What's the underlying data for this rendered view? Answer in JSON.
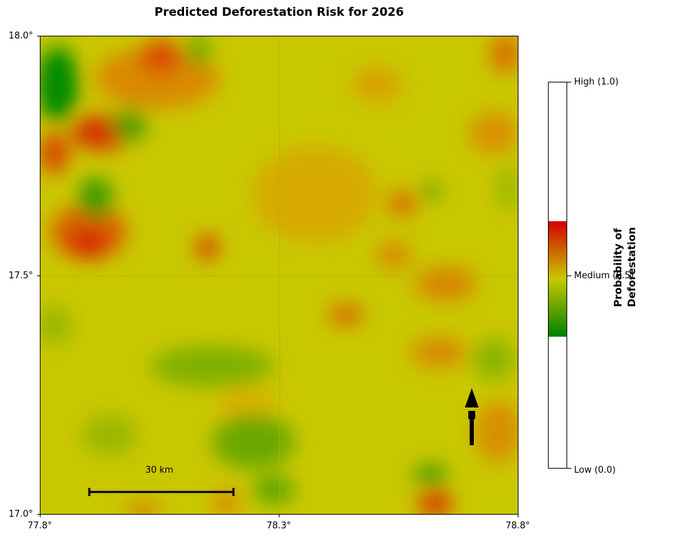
{
  "title": "Predicted Deforestation Risk for 2026",
  "map": {
    "x_ticks": [
      "77.8°",
      "78.3°",
      "78.8°"
    ],
    "y_ticks": [
      "18.0°",
      "17.5°",
      "17.0°"
    ],
    "scale_bar_label": "30 km",
    "north_arrow": "north-arrow-icon"
  },
  "colorbar": {
    "title_line1": "Probability of",
    "title_line2": "Deforestation",
    "labels": {
      "high": "High (1.0)",
      "medium": "Medium (0.5)",
      "low": "Low (0.0)"
    },
    "colors": {
      "low": "#008000",
      "medium": "#c8c800",
      "high": "#d40000"
    },
    "visible_range": [
      0.34,
      0.64
    ]
  }
}
